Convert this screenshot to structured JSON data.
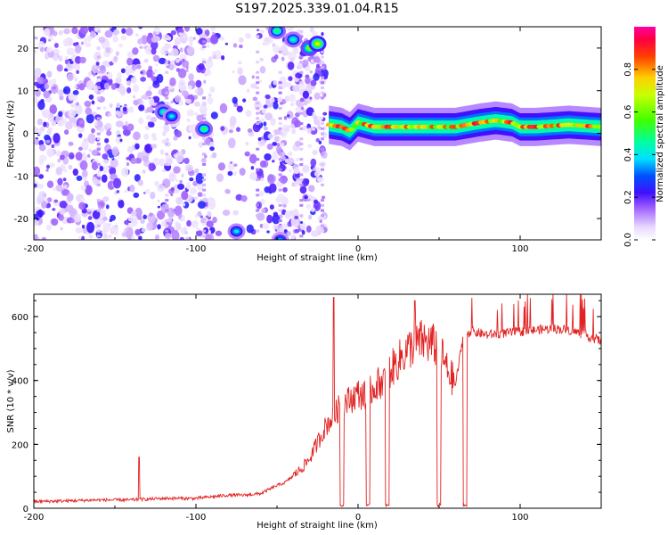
{
  "title": "S197.2025.339.01.04.R15",
  "chart_data": [
    {
      "type": "heatmap",
      "xlabel": "Height of straight line (km)",
      "ylabel": "Frequency (Hz)",
      "xlim": [
        -200,
        150
      ],
      "ylim": [
        -25,
        25
      ],
      "x_ticks": [
        "-200",
        "-100",
        "0",
        "100"
      ],
      "x_tick_values": [
        -200,
        -100,
        0,
        100
      ],
      "y_ticks": [
        "-20",
        "-10",
        "0",
        "10",
        "20"
      ],
      "y_tick_values": [
        -20,
        -10,
        0,
        10,
        20
      ],
      "colorbar": {
        "label": "Normalized spectral amplitude",
        "range": [
          0,
          1
        ],
        "ticks": [
          "0.0",
          "0.2",
          "0.4",
          "0.6",
          "0.8"
        ],
        "tick_values": [
          0,
          0.2,
          0.4,
          0.6,
          0.8
        ]
      },
      "features": {
        "noise_region_km": [
          -200,
          -20
        ],
        "strong_blobs": [
          {
            "x": -50,
            "y": 24,
            "amp": 0.5
          },
          {
            "x": -40,
            "y": 22,
            "amp": 0.45
          },
          {
            "x": -30,
            "y": 20,
            "amp": 0.6
          },
          {
            "x": -25,
            "y": 21,
            "amp": 0.7
          },
          {
            "x": -120,
            "y": 5,
            "amp": 0.45
          },
          {
            "x": -115,
            "y": 4,
            "amp": 0.4
          },
          {
            "x": -95,
            "y": 1,
            "amp": 0.5
          },
          {
            "x": -75,
            "y": -23,
            "amp": 0.4
          },
          {
            "x": -48,
            "y": -25,
            "amp": 0.35
          }
        ],
        "tone_line": {
          "start_km": -18,
          "end_km": 150,
          "points": [
            [
              -18,
              2.0
            ],
            [
              -10,
              1.5
            ],
            [
              -5,
              0.5
            ],
            [
              0,
              2.5
            ],
            [
              10,
              1.5
            ],
            [
              20,
              1.5
            ],
            [
              40,
              1.5
            ],
            [
              60,
              1.5
            ],
            [
              75,
              2.5
            ],
            [
              85,
              3.0
            ],
            [
              95,
              2.5
            ],
            [
              100,
              1.5
            ],
            [
              110,
              1.5
            ],
            [
              130,
              2.0
            ],
            [
              150,
              1.5
            ]
          ],
          "amp": 0.85
        }
      }
    },
    {
      "type": "line",
      "xlabel": "Height of straight line (km)",
      "ylabel": "SNR (10 * v/v)",
      "xlim": [
        -200,
        150
      ],
      "ylim": [
        0,
        670
      ],
      "x_ticks": [
        "-200",
        "-100",
        "0",
        "100"
      ],
      "x_tick_values": [
        -200,
        -100,
        0,
        100
      ],
      "y_ticks": [
        "0",
        "200",
        "400",
        "600"
      ],
      "y_tick_values": [
        0,
        200,
        400,
        600
      ],
      "series_color": "#e32222",
      "series": [
        {
          "name": "SNR",
          "x": [
            -200,
            -180,
            -160,
            -140,
            -120,
            -100,
            -90,
            -80,
            -70,
            -60,
            -50,
            -45,
            -40,
            -35,
            -30,
            -25,
            -20,
            -15,
            -10,
            -5,
            0,
            5,
            10,
            15,
            20,
            25,
            30,
            35,
            40,
            45,
            50,
            55,
            60,
            65,
            70,
            80,
            90,
            100,
            110,
            120,
            130,
            140,
            150
          ],
          "values": [
            20,
            22,
            25,
            25,
            30,
            30,
            35,
            40,
            40,
            45,
            70,
            80,
            100,
            120,
            150,
            200,
            250,
            280,
            320,
            330,
            350,
            340,
            370,
            390,
            420,
            450,
            480,
            500,
            510,
            500,
            490,
            420,
            380,
            540,
            550,
            540,
            545,
            550,
            555,
            560,
            555,
            540,
            520
          ]
        },
        {
          "name": "dropouts",
          "x": [
            -10,
            6,
            18,
            50,
            66
          ],
          "values": [
            0,
            0,
            0,
            0,
            0
          ]
        },
        {
          "name": "peaks",
          "x": [
            -135,
            -15,
            35
          ],
          "values": [
            160,
            660,
            650
          ]
        }
      ]
    }
  ]
}
